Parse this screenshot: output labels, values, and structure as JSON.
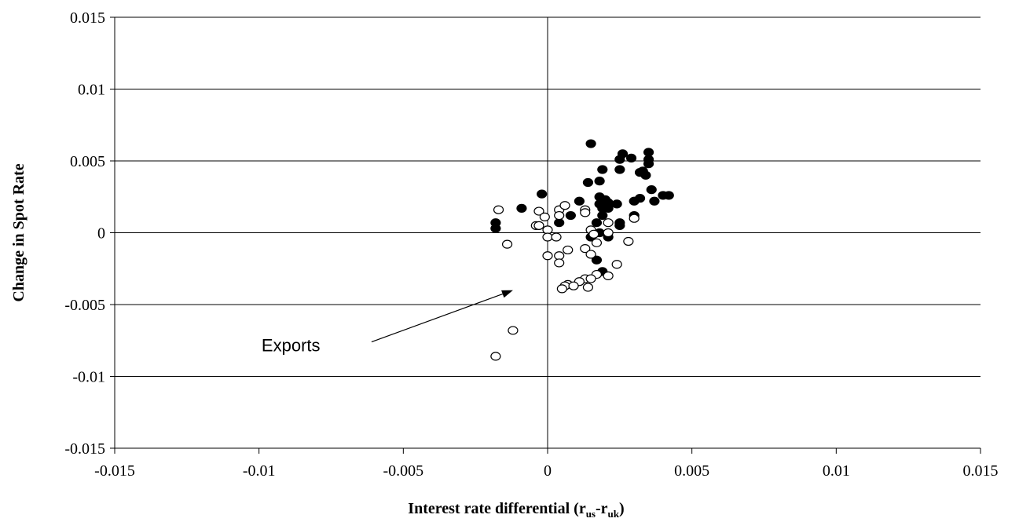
{
  "chart_data": {
    "type": "scatter",
    "title": "",
    "xlabel_main": "Interest rate differential (r",
    "xlabel_sub1": "us",
    "xlabel_dash": "-r",
    "xlabel_sub2": "uk",
    "xlabel_close": ")",
    "ylabel": "Change in Spot Rate",
    "xlim": [
      -0.015,
      0.015
    ],
    "ylim": [
      -0.015,
      0.015
    ],
    "x_ticks": [
      "-0.015",
      "-0.01",
      "-0.005",
      "0",
      "0.005",
      "0.01",
      "0.015"
    ],
    "y_ticks": [
      "0.015",
      "0.01",
      "0.005",
      "0",
      "-0.005",
      "-0.01",
      "-0.015"
    ],
    "grid": "horizontal",
    "annotation": {
      "text": "Exports",
      "from": [
        -0.0061,
        -0.0076
      ],
      "to": [
        -0.0012,
        -0.004
      ]
    },
    "series": [
      {
        "marker": "filled",
        "points": [
          [
            0.0015,
            0.0062
          ],
          [
            0.0026,
            0.0055
          ],
          [
            0.0035,
            0.0056
          ],
          [
            0.0025,
            0.0051
          ],
          [
            0.0029,
            0.0052
          ],
          [
            0.0035,
            0.0051
          ],
          [
            0.0035,
            0.0048
          ],
          [
            0.0019,
            0.0044
          ],
          [
            0.0025,
            0.0044
          ],
          [
            0.0032,
            0.0042
          ],
          [
            0.0033,
            0.0043
          ],
          [
            0.0034,
            0.004
          ],
          [
            0.0014,
            0.0035
          ],
          [
            0.0018,
            0.0036
          ],
          [
            0.0036,
            0.003
          ],
          [
            0.004,
            0.0026
          ],
          [
            0.0042,
            0.0026
          ],
          [
            0.0032,
            0.0024
          ],
          [
            0.0018,
            0.0025
          ],
          [
            0.0011,
            0.0022
          ],
          [
            0.002,
            0.0023
          ],
          [
            0.003,
            0.0022
          ],
          [
            0.0037,
            0.0022
          ],
          [
            0.0018,
            0.002
          ],
          [
            0.0021,
            0.0021
          ],
          [
            0.0024,
            0.002
          ],
          [
            0.0019,
            0.0017
          ],
          [
            0.0021,
            0.0017
          ],
          [
            -0.0002,
            0.0027
          ],
          [
            -0.0009,
            0.0017
          ],
          [
            0.0008,
            0.0012
          ],
          [
            0.0019,
            0.0012
          ],
          [
            0.003,
            0.0012
          ],
          [
            0.0004,
            0.0007
          ],
          [
            0.0017,
            0.0007
          ],
          [
            0.0025,
            0.0007
          ],
          [
            0.0025,
            0.0005
          ],
          [
            -0.0018,
            0.0007
          ],
          [
            -0.0018,
            0.0003
          ],
          [
            0.0018,
            0.0
          ],
          [
            0.0015,
            -0.0003
          ],
          [
            0.0021,
            -0.0003
          ],
          [
            0.0017,
            -0.0019
          ],
          [
            0.0019,
            -0.0027
          ]
        ]
      },
      {
        "marker": "hollow",
        "points": [
          [
            -0.0017,
            0.0016
          ],
          [
            -0.0003,
            0.0015
          ],
          [
            0.0004,
            0.0016
          ],
          [
            0.0006,
            0.0019
          ],
          [
            0.0013,
            0.0016
          ],
          [
            0.0013,
            0.0014
          ],
          [
            -0.0001,
            0.0011
          ],
          [
            0.0004,
            0.0012
          ],
          [
            -0.0004,
            0.0005
          ],
          [
            -0.0003,
            0.0005
          ],
          [
            0.0,
            0.0002
          ],
          [
            0.0021,
            0.0007
          ],
          [
            0.0015,
            0.0002
          ],
          [
            0.0016,
            -0.0001
          ],
          [
            0.0021,
            0.0
          ],
          [
            0.003,
            0.001
          ],
          [
            0.0,
            -0.0003
          ],
          [
            0.0003,
            -0.0003
          ],
          [
            -0.0014,
            -0.0008
          ],
          [
            0.0017,
            -0.0007
          ],
          [
            0.0028,
            -0.0006
          ],
          [
            0.0013,
            -0.0011
          ],
          [
            0.0007,
            -0.0012
          ],
          [
            0.0,
            -0.0016
          ],
          [
            0.0004,
            -0.0016
          ],
          [
            0.0015,
            -0.0015
          ],
          [
            0.0004,
            -0.0021
          ],
          [
            0.0024,
            -0.0022
          ],
          [
            0.0017,
            -0.0029
          ],
          [
            0.0021,
            -0.003
          ],
          [
            0.0013,
            -0.0032
          ],
          [
            0.0015,
            -0.0032
          ],
          [
            0.0011,
            -0.0034
          ],
          [
            0.0007,
            -0.0036
          ],
          [
            0.0006,
            -0.0037
          ],
          [
            0.0009,
            -0.0037
          ],
          [
            0.0005,
            -0.0039
          ],
          [
            0.0014,
            -0.0038
          ],
          [
            -0.0012,
            -0.0068
          ],
          [
            -0.0018,
            -0.0086
          ]
        ]
      }
    ]
  }
}
